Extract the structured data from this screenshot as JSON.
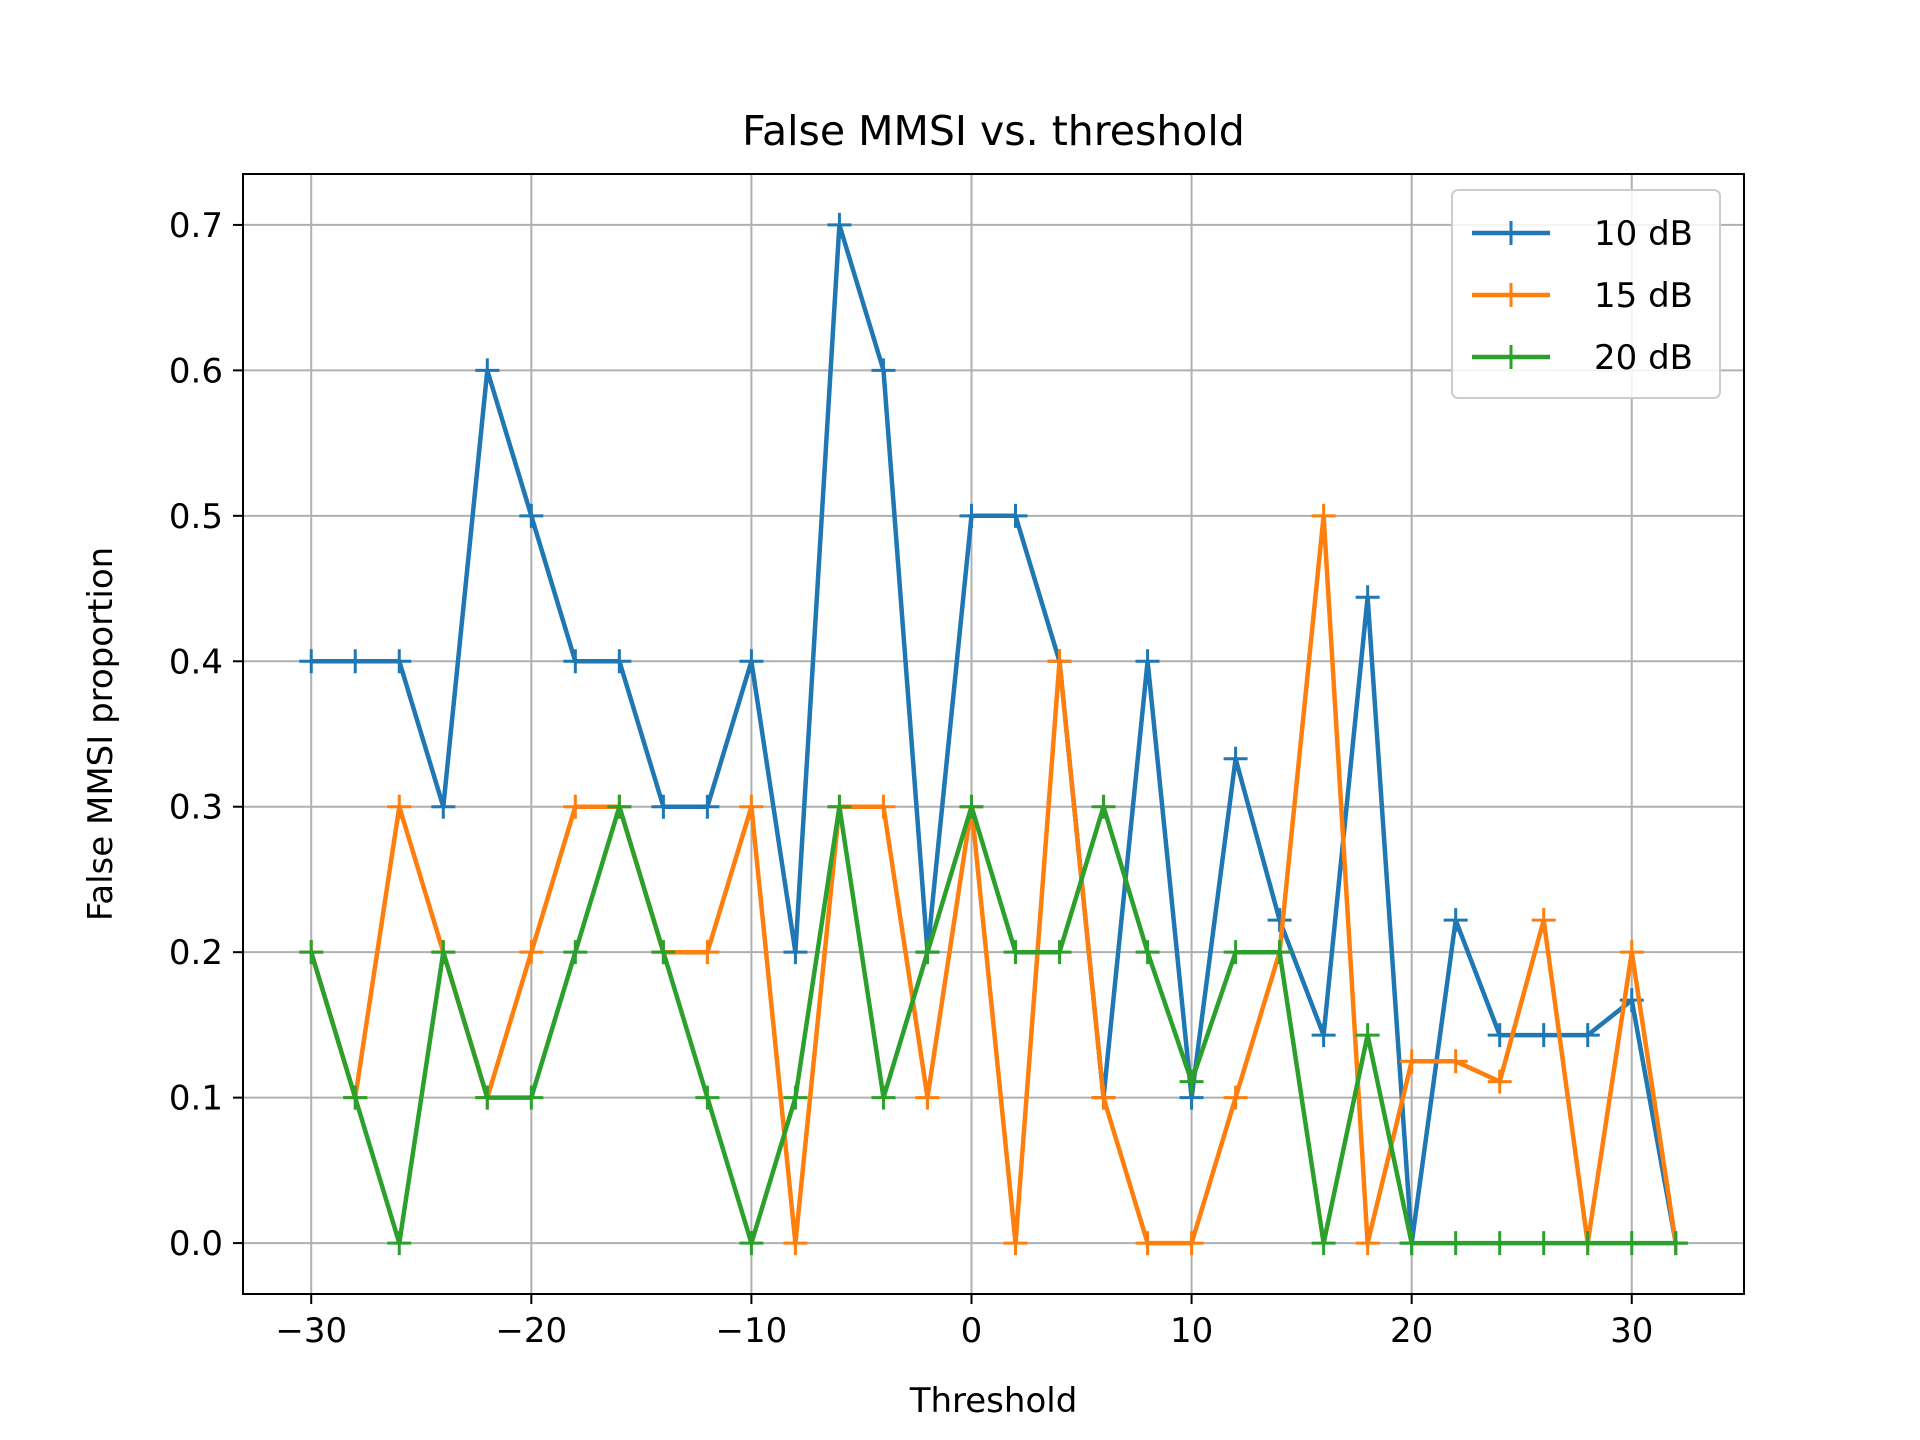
{
  "chart_data": {
    "type": "line",
    "title": "False MMSI vs. threshold",
    "xlabel": "Threshold",
    "ylabel": "False MMSI proportion",
    "xlim": [
      -33.1,
      35.1
    ],
    "ylim": [
      -0.035,
      0.735
    ],
    "xticks": [
      -30,
      -20,
      -10,
      0,
      10,
      20,
      30
    ],
    "xtick_labels": [
      "−30",
      "−20",
      "−10",
      "0",
      "10",
      "20",
      "30"
    ],
    "yticks": [
      0.0,
      0.1,
      0.2,
      0.3,
      0.4,
      0.5,
      0.6,
      0.7
    ],
    "ytick_labels": [
      "0.0",
      "0.1",
      "0.2",
      "0.3",
      "0.4",
      "0.5",
      "0.6",
      "0.7"
    ],
    "grid": true,
    "legend_position": "top-right",
    "marker": "+",
    "x": [
      -30,
      -28,
      -26,
      -24,
      -22,
      -20,
      -18,
      -16,
      -14,
      -12,
      -10,
      -8,
      -6,
      -4,
      -2,
      0,
      2,
      4,
      6,
      8,
      10,
      12,
      14,
      16,
      18,
      20,
      22,
      24,
      26,
      28,
      30,
      32
    ],
    "series": [
      {
        "name": "10 dB",
        "color": "#1f77b4",
        "values": [
          0.4,
          0.4,
          0.4,
          0.3,
          0.6,
          0.5,
          0.4,
          0.4,
          0.3,
          0.3,
          0.4,
          0.2,
          0.7,
          0.6,
          0.2,
          0.5,
          0.5,
          0.4,
          0.1,
          0.4,
          0.1,
          0.333,
          0.222,
          0.143,
          0.444,
          0.0,
          0.222,
          0.143,
          0.143,
          0.143,
          0.167,
          0.0
        ]
      },
      {
        "name": "15 dB",
        "color": "#ff7f0e",
        "values": [
          0.2,
          0.1,
          0.3,
          0.2,
          0.1,
          0.2,
          0.3,
          0.3,
          0.2,
          0.2,
          0.3,
          0.0,
          0.3,
          0.3,
          0.1,
          0.3,
          0.0,
          0.4,
          0.1,
          0.0,
          0.0,
          0.1,
          0.2,
          0.5,
          0.0,
          0.125,
          0.125,
          0.111,
          0.222,
          0.0,
          0.2,
          0.0
        ]
      },
      {
        "name": "20 dB",
        "color": "#2ca02c",
        "values": [
          0.2,
          0.1,
          0.0,
          0.2,
          0.1,
          0.1,
          0.2,
          0.3,
          0.2,
          0.1,
          0.0,
          0.1,
          0.3,
          0.1,
          0.2,
          0.3,
          0.2,
          0.2,
          0.3,
          0.2,
          0.111,
          0.2,
          0.2,
          0.0,
          0.143,
          0.0,
          0.0,
          0.0,
          0.0,
          0.0,
          0.0,
          0.0
        ]
      }
    ]
  }
}
